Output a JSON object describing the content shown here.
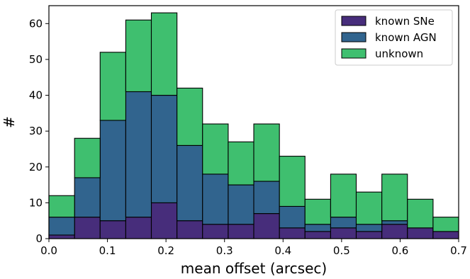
{
  "chart_data": {
    "type": "bar",
    "stacked": true,
    "bin_edges": [
      0.0,
      0.0438,
      0.0875,
      0.1313,
      0.175,
      0.2188,
      0.2625,
      0.3063,
      0.35,
      0.3938,
      0.4375,
      0.4813,
      0.525,
      0.5688,
      0.6125,
      0.6563,
      0.7
    ],
    "series": [
      {
        "name": "known SNe",
        "color": "#472d7b",
        "values": [
          1,
          6,
          5,
          6,
          10,
          5,
          4,
          4,
          7,
          3,
          2,
          3,
          2,
          4,
          3,
          2
        ]
      },
      {
        "name": "known AGN",
        "color": "#31648e",
        "values": [
          5,
          11,
          28,
          35,
          30,
          21,
          14,
          11,
          9,
          6,
          2,
          3,
          2,
          1,
          0,
          0
        ]
      },
      {
        "name": "unknown",
        "color": "#3fbf6f",
        "values": [
          6,
          11,
          19,
          20,
          23,
          16,
          14,
          12,
          16,
          14,
          7,
          12,
          9,
          13,
          8,
          4
        ]
      }
    ],
    "xlabel": "mean offset (arcsec)",
    "ylabel": "#",
    "xlim": [
      0.0,
      0.7
    ],
    "ylim": [
      0,
      65
    ],
    "xticks": [
      "0.0",
      "0.1",
      "0.2",
      "0.3",
      "0.4",
      "0.5",
      "0.6",
      "0.7"
    ],
    "yticks": [
      "0",
      "10",
      "20",
      "30",
      "40",
      "50",
      "60"
    ],
    "grid": false,
    "legend_position": "top-right"
  }
}
